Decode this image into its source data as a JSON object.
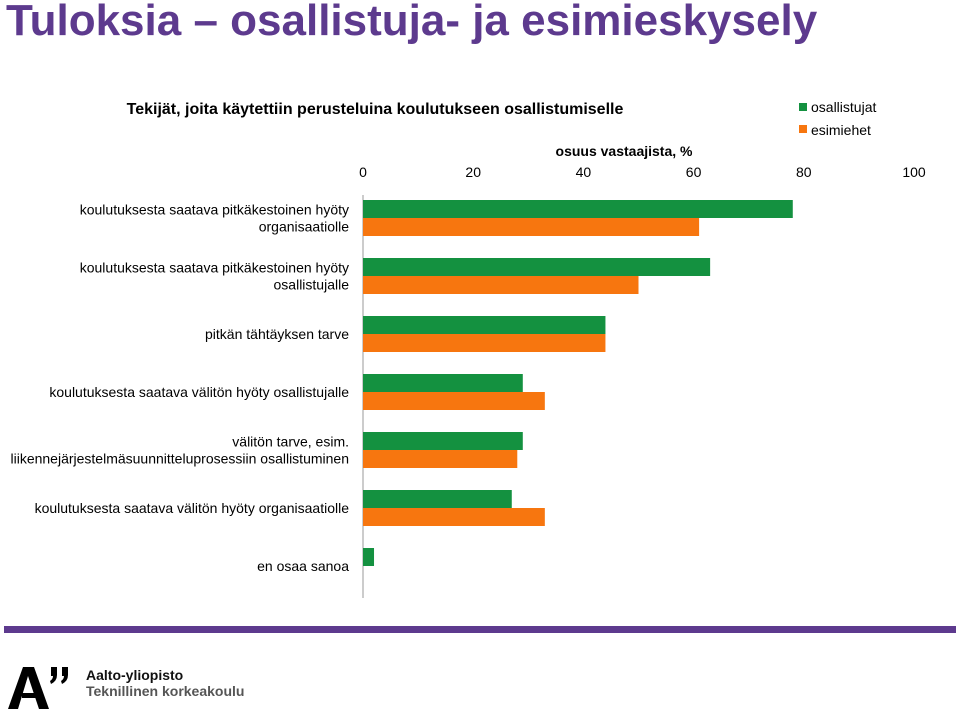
{
  "slide": {
    "title": "Tuloksia – osallistuja- ja esimieskysely"
  },
  "footer": {
    "org_name": "Aalto-yliopisto",
    "org_subtitle": "Teknillinen korkeakoulu"
  },
  "colors": {
    "series_1": "#149140",
    "series_2": "#f7760f",
    "accent": "#5d3a8e"
  },
  "chart_data": {
    "type": "bar",
    "orientation": "horizontal",
    "title": "Tekijät, joita käytettiin perusteluina koulutukseen osallistumiselle",
    "xlabel": "osuus vastaajista, %",
    "ylabel": "",
    "xlim": [
      0,
      100
    ],
    "ticks": [
      "0",
      "20",
      "40",
      "60",
      "80",
      "100"
    ],
    "tick_values": [
      0,
      20,
      40,
      60,
      80,
      100
    ],
    "legend_position": "top-right",
    "categories": [
      [
        "koulutuksesta saatava pitkäkestoinen hyöty",
        "organisaatiolle"
      ],
      [
        "koulutuksesta saatava pitkäkestoinen hyöty",
        "osallistujalle"
      ],
      [
        "pitkän tähtäyksen tarve"
      ],
      [
        "koulutuksesta saatava välitön hyöty osallistujalle"
      ],
      [
        "välitön tarve, esim.",
        "liikennejärjestelmäsuunnitteluprosessiin osallistuminen"
      ],
      [
        "koulutuksesta saatava välitön hyöty organisaatiolle"
      ],
      [
        "en osaa sanoa"
      ]
    ],
    "series": [
      {
        "name": "osallistujat",
        "color": "#149140",
        "values": [
          78,
          63,
          44,
          29,
          29,
          27,
          2
        ]
      },
      {
        "name": "esimiehet",
        "color": "#f7760f",
        "values": [
          61,
          50,
          44,
          33,
          28,
          33,
          0
        ]
      }
    ]
  }
}
